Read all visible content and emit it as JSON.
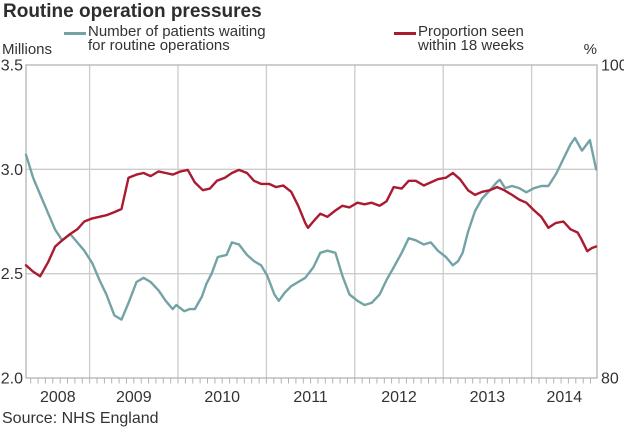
{
  "title": "Routine operation pressures",
  "source": "Source: NHS England",
  "legend": [
    {
      "series": "waiting",
      "line1": "Number of patients waiting",
      "line2": "for routine operations",
      "color": "#74a3a6"
    },
    {
      "series": "within18",
      "line1": "Proportion seen",
      "line2": "within 18 weeks",
      "color": "#aa1a30"
    }
  ],
  "chart_data": {
    "type": "line",
    "title": "Routine operation pressures",
    "source": "Source: NHS England",
    "background": "#ffffff",
    "grid_color": "#cccccc",
    "frame_color": "#b3b3b3",
    "tick_color": "#b3b3b3",
    "x_axis": {
      "min": 2008.28,
      "max": 2014.74,
      "gridline_years": [
        2009,
        2010,
        2011,
        2012,
        2013,
        2014
      ],
      "year_labels": [
        "2008",
        "2009",
        "2010",
        "2011",
        "2012",
        "2013",
        "2014"
      ],
      "minor_ticks": "monthly"
    },
    "left_axis": {
      "label": "Millions",
      "min": 2.0,
      "max": 3.5,
      "ticks": [
        {
          "value": 3.5,
          "label": "3.5"
        },
        {
          "value": 3.0,
          "label": "3.0"
        },
        {
          "value": 2.5,
          "label": "2.5"
        },
        {
          "value": 2.0,
          "label": "2.0"
        }
      ],
      "gridlines": [
        3.0,
        2.5
      ]
    },
    "right_axis": {
      "label": "%",
      "min": 80,
      "max": 100,
      "ticks": [
        {
          "value": 100,
          "label": "100"
        },
        {
          "value": 80,
          "label": "80"
        }
      ],
      "gridlines": []
    },
    "series": [
      {
        "id": "waiting",
        "name": "Number of patients waiting for routine operations",
        "axis": "left",
        "unit": "millions",
        "color": "#74a3a6",
        "points": [
          [
            2008.28,
            3.07
          ],
          [
            2008.36,
            2.96
          ],
          [
            2008.44,
            2.88
          ],
          [
            2008.53,
            2.79
          ],
          [
            2008.61,
            2.71
          ],
          [
            2008.69,
            2.66
          ],
          [
            2008.78,
            2.69
          ],
          [
            2008.86,
            2.65
          ],
          [
            2008.94,
            2.61
          ],
          [
            2009.03,
            2.55
          ],
          [
            2009.11,
            2.47
          ],
          [
            2009.19,
            2.4
          ],
          [
            2009.28,
            2.3
          ],
          [
            2009.36,
            2.28
          ],
          [
            2009.44,
            2.36
          ],
          [
            2009.53,
            2.46
          ],
          [
            2009.61,
            2.48
          ],
          [
            2009.69,
            2.46
          ],
          [
            2009.78,
            2.42
          ],
          [
            2009.86,
            2.37
          ],
          [
            2009.94,
            2.33
          ],
          [
            2009.98,
            2.35
          ],
          [
            2010.07,
            2.32
          ],
          [
            2010.13,
            2.33
          ],
          [
            2010.19,
            2.33
          ],
          [
            2010.27,
            2.39
          ],
          [
            2010.32,
            2.45
          ],
          [
            2010.38,
            2.5
          ],
          [
            2010.45,
            2.58
          ],
          [
            2010.55,
            2.59
          ],
          [
            2010.61,
            2.65
          ],
          [
            2010.69,
            2.64
          ],
          [
            2010.78,
            2.59
          ],
          [
            2010.86,
            2.56
          ],
          [
            2010.94,
            2.54
          ],
          [
            2011.01,
            2.49
          ],
          [
            2011.09,
            2.4
          ],
          [
            2011.14,
            2.37
          ],
          [
            2011.21,
            2.41
          ],
          [
            2011.28,
            2.44
          ],
          [
            2011.36,
            2.46
          ],
          [
            2011.44,
            2.48
          ],
          [
            2011.53,
            2.53
          ],
          [
            2011.61,
            2.6
          ],
          [
            2011.69,
            2.61
          ],
          [
            2011.78,
            2.6
          ],
          [
            2011.86,
            2.49
          ],
          [
            2011.94,
            2.4
          ],
          [
            2012.03,
            2.37
          ],
          [
            2012.11,
            2.35
          ],
          [
            2012.19,
            2.36
          ],
          [
            2012.28,
            2.4
          ],
          [
            2012.36,
            2.47
          ],
          [
            2012.44,
            2.53
          ],
          [
            2012.53,
            2.6
          ],
          [
            2012.61,
            2.67
          ],
          [
            2012.69,
            2.66
          ],
          [
            2012.78,
            2.64
          ],
          [
            2012.86,
            2.65
          ],
          [
            2012.94,
            2.61
          ],
          [
            2013.03,
            2.58
          ],
          [
            2013.11,
            2.54
          ],
          [
            2013.17,
            2.56
          ],
          [
            2013.22,
            2.6
          ],
          [
            2013.28,
            2.7
          ],
          [
            2013.36,
            2.8
          ],
          [
            2013.44,
            2.86
          ],
          [
            2013.53,
            2.9
          ],
          [
            2013.61,
            2.94
          ],
          [
            2013.64,
            2.95
          ],
          [
            2013.7,
            2.91
          ],
          [
            2013.78,
            2.92
          ],
          [
            2013.86,
            2.91
          ],
          [
            2013.94,
            2.89
          ],
          [
            2014.03,
            2.91
          ],
          [
            2014.11,
            2.92
          ],
          [
            2014.19,
            2.92
          ],
          [
            2014.28,
            2.98
          ],
          [
            2014.36,
            3.05
          ],
          [
            2014.44,
            3.12
          ],
          [
            2014.49,
            3.15
          ],
          [
            2014.57,
            3.09
          ],
          [
            2014.66,
            3.14
          ],
          [
            2014.73,
            3.0
          ]
        ]
      },
      {
        "id": "within18",
        "name": "Proportion seen within 18 weeks",
        "axis": "right",
        "unit": "percent",
        "color": "#aa1a30",
        "points": [
          [
            2008.28,
            87.2
          ],
          [
            2008.36,
            86.8
          ],
          [
            2008.44,
            86.5
          ],
          [
            2008.53,
            87.4
          ],
          [
            2008.61,
            88.4
          ],
          [
            2008.69,
            88.8
          ],
          [
            2008.78,
            89.2
          ],
          [
            2008.86,
            89.5
          ],
          [
            2008.94,
            90.0
          ],
          [
            2009.03,
            90.2
          ],
          [
            2009.11,
            90.3
          ],
          [
            2009.19,
            90.4
          ],
          [
            2009.28,
            90.6
          ],
          [
            2009.36,
            90.8
          ],
          [
            2009.44,
            92.8
          ],
          [
            2009.53,
            93.0
          ],
          [
            2009.61,
            93.1
          ],
          [
            2009.69,
            92.9
          ],
          [
            2009.78,
            93.2
          ],
          [
            2009.86,
            93.1
          ],
          [
            2009.94,
            93.0
          ],
          [
            2010.03,
            93.2
          ],
          [
            2010.11,
            93.3
          ],
          [
            2010.19,
            92.5
          ],
          [
            2010.28,
            92.0
          ],
          [
            2010.36,
            92.1
          ],
          [
            2010.44,
            92.6
          ],
          [
            2010.53,
            92.8
          ],
          [
            2010.61,
            93.1
          ],
          [
            2010.69,
            93.3
          ],
          [
            2010.78,
            93.1
          ],
          [
            2010.86,
            92.6
          ],
          [
            2010.94,
            92.4
          ],
          [
            2011.03,
            92.4
          ],
          [
            2011.11,
            92.2
          ],
          [
            2011.19,
            92.3
          ],
          [
            2011.28,
            91.9
          ],
          [
            2011.36,
            91.0
          ],
          [
            2011.44,
            89.9
          ],
          [
            2011.47,
            89.6
          ],
          [
            2011.53,
            90.0
          ],
          [
            2011.61,
            90.5
          ],
          [
            2011.69,
            90.3
          ],
          [
            2011.78,
            90.7
          ],
          [
            2011.86,
            91.0
          ],
          [
            2011.94,
            90.9
          ],
          [
            2012.03,
            91.2
          ],
          [
            2012.11,
            91.1
          ],
          [
            2012.19,
            91.2
          ],
          [
            2012.28,
            91.0
          ],
          [
            2012.36,
            91.3
          ],
          [
            2012.44,
            92.2
          ],
          [
            2012.53,
            92.1
          ],
          [
            2012.61,
            92.6
          ],
          [
            2012.69,
            92.6
          ],
          [
            2012.78,
            92.3
          ],
          [
            2012.86,
            92.5
          ],
          [
            2012.94,
            92.7
          ],
          [
            2013.03,
            92.8
          ],
          [
            2013.11,
            93.1
          ],
          [
            2013.19,
            92.7
          ],
          [
            2013.28,
            92.0
          ],
          [
            2013.36,
            91.7
          ],
          [
            2013.44,
            91.9
          ],
          [
            2013.53,
            92.0
          ],
          [
            2013.61,
            92.2
          ],
          [
            2013.69,
            92.0
          ],
          [
            2013.78,
            91.7
          ],
          [
            2013.86,
            91.4
          ],
          [
            2013.94,
            91.2
          ],
          [
            2014.03,
            90.7
          ],
          [
            2014.11,
            90.3
          ],
          [
            2014.19,
            89.6
          ],
          [
            2014.27,
            89.9
          ],
          [
            2014.36,
            90.0
          ],
          [
            2014.44,
            89.5
          ],
          [
            2014.52,
            89.3
          ],
          [
            2014.56,
            88.9
          ],
          [
            2014.63,
            88.1
          ],
          [
            2014.68,
            88.3
          ],
          [
            2014.73,
            88.4
          ]
        ]
      }
    ]
  }
}
